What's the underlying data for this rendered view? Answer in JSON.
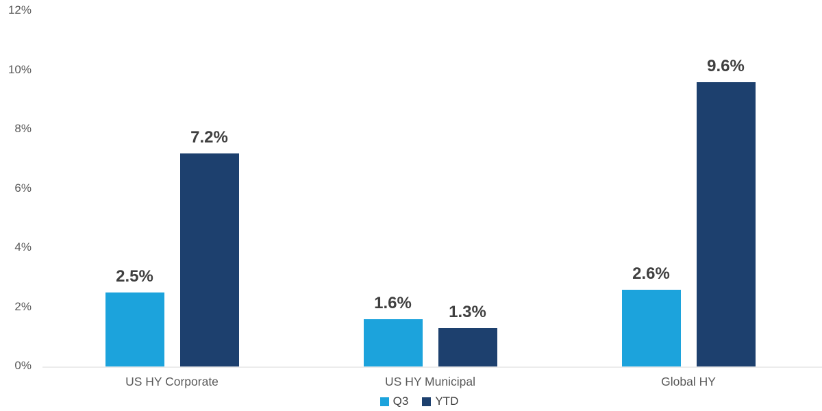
{
  "chart_data": {
    "type": "bar",
    "title": "",
    "categories": [
      "US HY Corporate",
      "US HY Municipal",
      "Global HY"
    ],
    "series": [
      {
        "name": "Q3",
        "color": "#1CA3DC",
        "values": [
          2.5,
          1.6,
          2.6
        ],
        "data_labels": [
          "2.5%",
          "1.6%",
          "2.6%"
        ]
      },
      {
        "name": "YTD",
        "color": "#1D406E",
        "values": [
          7.2,
          1.3,
          9.6
        ],
        "data_labels": [
          "7.2%",
          "1.3%",
          "9.6%"
        ]
      }
    ],
    "y_axis": {
      "min": 0,
      "max": 12,
      "tick_step": 2,
      "tick_labels": [
        "0%",
        "2%",
        "4%",
        "6%",
        "8%",
        "10%",
        "12%"
      ],
      "unit": "%"
    },
    "x_axis": {
      "labels": [
        "US HY Corporate",
        "US HY Municipal",
        "Global HY"
      ]
    },
    "legend": {
      "position": "bottom",
      "entries": [
        "Q3",
        "YTD"
      ]
    },
    "grid": false,
    "data_labels_shown": true
  },
  "colors": {
    "series_q3": "#1CA3DC",
    "series_ytd": "#1D406E",
    "axis_line": "#ECECEC",
    "tick_text": "#595959",
    "data_label_text": "#3F3F3F"
  }
}
